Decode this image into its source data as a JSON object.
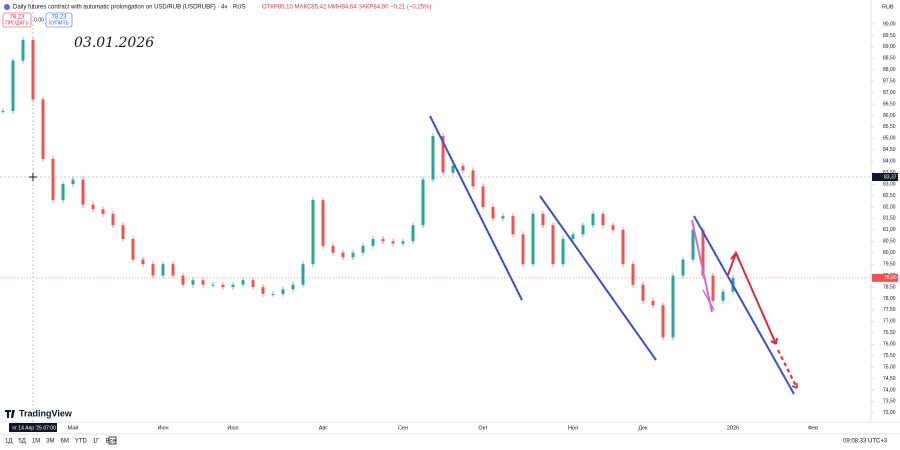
{
  "chart_data": {
    "type": "candlestick",
    "title": "Daily futures contract with automatic prolongation on USD/RUB (USDRUBF) · 4ч · RUS",
    "ohlc_text": "ОТКР85,10 МАКС85,42 МИН84,64 ЗАКР84,90 −0,21 (−0,25%)",
    "annotation": "03.01.2026",
    "currency": "RUB",
    "up_color": "#26a69a",
    "down_color": "#ef5350",
    "categories": [
      null,
      null,
      null,
      null,
      null,
      null,
      null,
      "Май",
      null,
      null,
      null,
      null,
      null,
      null,
      null,
      null,
      "Июн",
      null,
      null,
      null,
      null,
      null,
      null,
      "Июл",
      null,
      null,
      null,
      null,
      null,
      null,
      null,
      null,
      "Авг",
      null,
      null,
      null,
      null,
      null,
      null,
      null,
      "Сен",
      null,
      null,
      null,
      null,
      null,
      null,
      null,
      "Окт",
      null,
      null,
      null,
      null,
      null,
      null,
      null,
      null,
      "Ноя",
      null,
      null,
      null,
      null,
      null,
      null,
      "Дек",
      null,
      null,
      null,
      null,
      null,
      null,
      null,
      null,
      "2026",
      null,
      null,
      null,
      null,
      null,
      null,
      null,
      "Фев",
      null,
      null,
      null,
      null,
      null,
      null
    ],
    "values": [
      86.2,
      88.4,
      89.3,
      86.7,
      84.1,
      82.3,
      83.0,
      83.2,
      82.1,
      81.9,
      81.7,
      81.2,
      80.6,
      79.7,
      79.5,
      79.0,
      79.5,
      79.0,
      78.6,
      78.8,
      78.6,
      78.6,
      78.5,
      78.6,
      78.8,
      78.5,
      78.2,
      78.2,
      78.4,
      78.6,
      79.5,
      82.3,
      80.3,
      80.0,
      79.8,
      80.0,
      80.3,
      80.6,
      80.5,
      80.4,
      80.5,
      81.2,
      83.2,
      85.1,
      83.5,
      83.8,
      83.6,
      82.9,
      82.0,
      81.5,
      81.6,
      80.8,
      79.5,
      81.7,
      81.2,
      79.5,
      80.6,
      80.8,
      81.2,
      81.7,
      81.2,
      81.0,
      79.5,
      78.6,
      77.9,
      77.7,
      76.3,
      79.0,
      79.7,
      81.0,
      79.0,
      77.9,
      78.3,
      78.9,
      null,
      null,
      null,
      null,
      null,
      null,
      null,
      null,
      null,
      null,
      null,
      null,
      null,
      null
    ],
    "last_price_label": "78,90",
    "crosshair_price_label": "83,37",
    "crosshair_time_label": "чт 14 Апр '25   07:00",
    "ylim": [
      72.6,
      90.83
    ],
    "yticks": [
      {
        "value": 73.0,
        "label": "73,00"
      },
      {
        "value": 73.5,
        "label": "73,50"
      },
      {
        "value": 74.0,
        "label": "74,00"
      },
      {
        "value": 74.5,
        "label": "74,50"
      },
      {
        "value": 75.0,
        "label": "75,00"
      },
      {
        "value": 75.5,
        "label": "75,50"
      },
      {
        "value": 76.0,
        "label": "76,00"
      },
      {
        "value": 76.5,
        "label": "76,50"
      },
      {
        "value": 77.0,
        "label": "77,00"
      },
      {
        "value": 77.5,
        "label": "77,50"
      },
      {
        "value": 78.0,
        "label": "78,00"
      },
      {
        "value": 78.5,
        "label": "78,50"
      },
      {
        "value": 79.0,
        "label": "79,00"
      },
      {
        "value": 79.5,
        "label": "79,50"
      },
      {
        "value": 80.0,
        "label": "80,00"
      },
      {
        "value": 80.5,
        "label": "80,50"
      },
      {
        "value": 81.0,
        "label": "81,00"
      },
      {
        "value": 81.5,
        "label": "81,50"
      },
      {
        "value": 82.0,
        "label": "82,00"
      },
      {
        "value": 82.5,
        "label": "82,50"
      },
      {
        "value": 83.0,
        "label": "83,00"
      },
      {
        "value": 83.5,
        "label": "83,50"
      },
      {
        "value": 84.0,
        "label": "84,00"
      },
      {
        "value": 84.5,
        "label": "84,50"
      },
      {
        "value": 85.0,
        "label": "85,00"
      },
      {
        "value": 85.5,
        "label": "85,50"
      },
      {
        "value": 86.0,
        "label": "86,00"
      },
      {
        "value": 86.5,
        "label": "86,50"
      },
      {
        "value": 87.0,
        "label": "87,00"
      },
      {
        "value": 87.5,
        "label": "87,50"
      },
      {
        "value": 88.0,
        "label": "88,00"
      },
      {
        "value": 88.5,
        "label": "88,50"
      },
      {
        "value": 89.0,
        "label": "89,00"
      },
      {
        "value": 89.5,
        "label": "89,50"
      },
      {
        "value": 90.0,
        "label": "90,00"
      }
    ],
    "grid": false
  },
  "ui": {
    "sell_price": "78,23",
    "sell": "ПРОДАТЬ",
    "spread": "0.00",
    "buy_price": "78,23",
    "buy": "КУПИТЬ",
    "brand": "TradingView",
    "ranges": [
      "1Д",
      "5Д",
      "1М",
      "3М",
      "6М",
      "YTD",
      "1Г",
      "Все"
    ],
    "clock": "09:08:33 UTC+3"
  }
}
